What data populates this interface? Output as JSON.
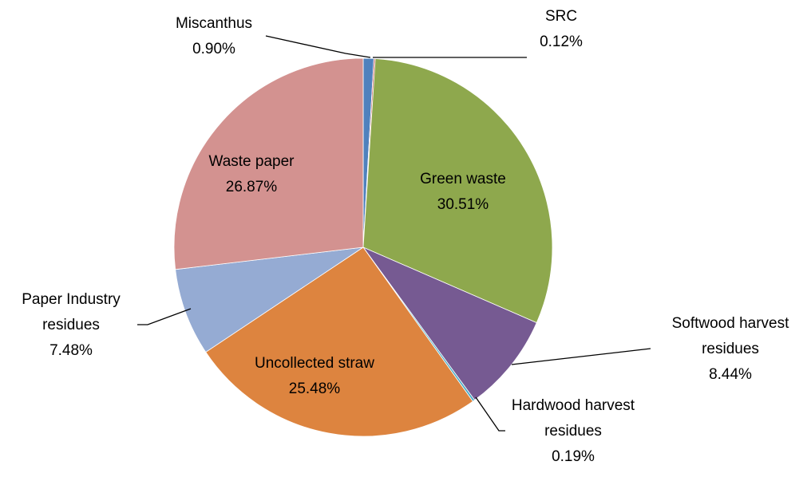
{
  "chart_data": {
    "type": "pie",
    "title": "",
    "slices": [
      {
        "name": "Miscanthus",
        "lines": [
          "Miscanthus"
        ],
        "value": 0.9,
        "value_label": "0.90%",
        "color": "#4f81bd",
        "label_position": "outside"
      },
      {
        "name": "SRC",
        "lines": [
          "SRC"
        ],
        "value": 0.12,
        "value_label": "0.12%",
        "color": "#c0504d",
        "label_position": "outside"
      },
      {
        "name": "Green waste",
        "lines": [
          "Green waste"
        ],
        "value": 30.51,
        "value_label": "30.51%",
        "color": "#8ea84d",
        "label_position": "inside"
      },
      {
        "name": "Softwood harvest residues",
        "lines": [
          "Softwood harvest",
          "residues"
        ],
        "value": 8.44,
        "value_label": "8.44%",
        "color": "#765a92",
        "label_position": "outside"
      },
      {
        "name": "Hardwood harvest residues",
        "lines": [
          "Hardwood harvest",
          "residues"
        ],
        "value": 0.19,
        "value_label": "0.19%",
        "color": "#4aacc6",
        "label_position": "outside"
      },
      {
        "name": "Uncollected straw",
        "lines": [
          "Uncollected straw"
        ],
        "value": 25.48,
        "value_label": "25.48%",
        "color": "#dd843f",
        "label_position": "inside"
      },
      {
        "name": "Paper Industry residues",
        "lines": [
          "Paper Industry",
          "residues"
        ],
        "value": 7.48,
        "value_label": "7.48%",
        "color": "#95abd3",
        "label_position": "outside"
      },
      {
        "name": "Waste paper",
        "lines": [
          "Waste paper"
        ],
        "value": 26.87,
        "value_label": "26.87%",
        "color": "#d39290",
        "label_position": "inside"
      }
    ]
  }
}
